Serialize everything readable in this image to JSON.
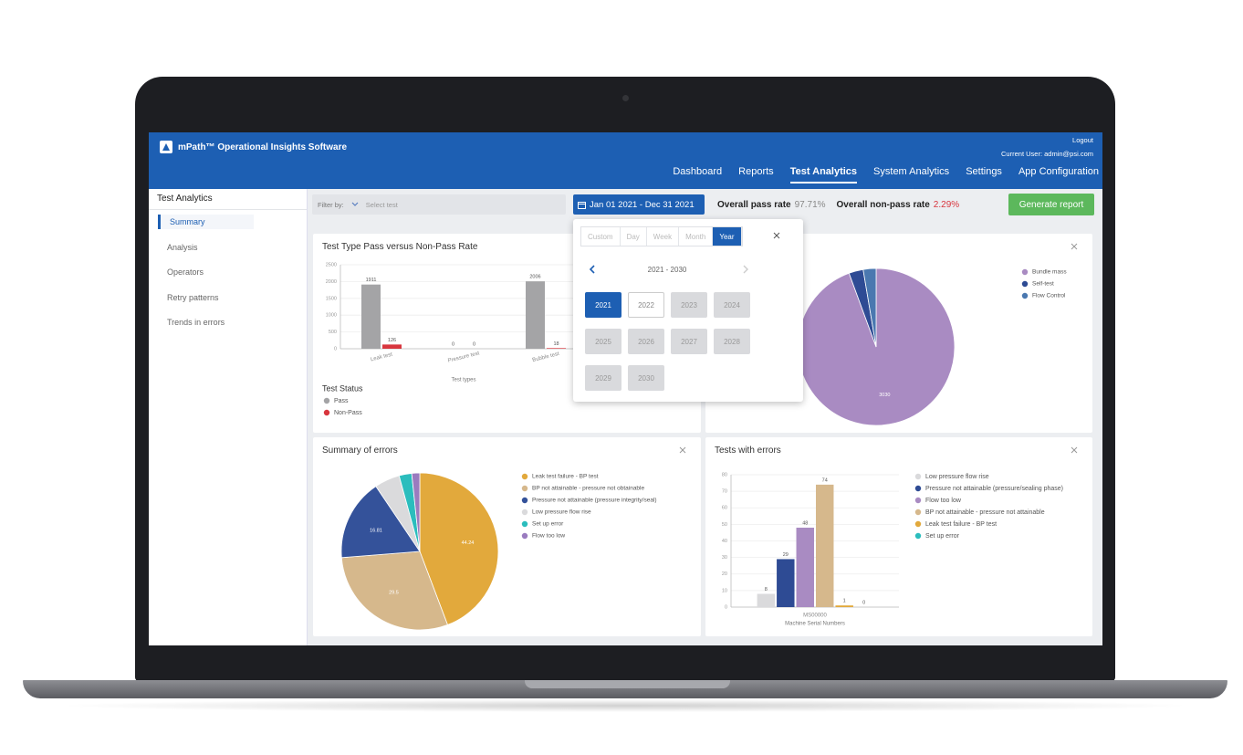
{
  "header": {
    "title": "mPath™ Operational Insights Software",
    "logout": "Logout",
    "current_user": "Current User: admin@psi.com",
    "nav": [
      "Dashboard",
      "Reports",
      "Test Analytics",
      "System Analytics",
      "Settings",
      "App Configuration"
    ]
  },
  "sidebar": {
    "title": "Test Analytics",
    "items": [
      "Summary",
      "Analysis",
      "Operators",
      "Retry patterns",
      "Trends in errors"
    ]
  },
  "toolbar": {
    "filter_label": "Filter by:",
    "filter_placeholder": "Select test",
    "date_range": "Jan 01 2021 - Dec 31 2021",
    "pass_rate_label": "Overall pass rate",
    "pass_rate": "97.71%",
    "non_pass_label": "Overall non-pass rate",
    "non_pass_rate": "2.29%",
    "report_button": "Generate report"
  },
  "date_picker": {
    "tabs": [
      "Custom",
      "Day",
      "Week",
      "Month",
      "Year"
    ],
    "range": "2021 - 2030",
    "years": [
      2021,
      2022,
      2023,
      2024,
      2025,
      2026,
      2027,
      2028,
      2029,
      2030
    ]
  },
  "panels": [
    {
      "type": "bar",
      "title": "Test Type Pass versus Non-Pass Rate",
      "categories": [
        "Leak test",
        "Pressure test",
        "Bubble test"
      ],
      "series": [
        {
          "name": "Pass",
          "color": "#a4a4a6",
          "values": [
            1911,
            0,
            2006
          ]
        },
        {
          "name": "Non-Pass",
          "color": "#d8363e",
          "values": [
            126,
            0,
            18
          ]
        }
      ],
      "ylim": [
        0,
        2500
      ],
      "yticks": [
        0,
        500,
        1000,
        1500,
        2000,
        2500
      ],
      "xlabel": "Test types",
      "legend_title": "Test Status"
    },
    {
      "type": "pie",
      "labels": [
        "Bundle mass",
        "Self-test",
        "Flow Control"
      ],
      "colors": [
        "#a98bc2",
        "#2e4b94",
        "#4a78b0"
      ],
      "values": [
        3030,
        95,
        85
      ]
    },
    {
      "type": "pie",
      "title": "Summary of errors",
      "labels": [
        "Leak test failure - BP test",
        "BP not attainable - pressure not obtainable",
        "Pressure not attainable (pressure integrity/seal)",
        "Low pressure flow rise",
        "Set up error",
        "Flow too low"
      ],
      "colors": [
        "#e2a93c",
        "#d6b88c",
        "#34529a",
        "#dadadc",
        "#2bbdbd",
        "#9a7bbf"
      ],
      "values": [
        44.24,
        29.5,
        16.81,
        5.2,
        2.6,
        1.65
      ]
    },
    {
      "type": "bar",
      "title": "Tests with errors",
      "categories": [
        "MS00000"
      ],
      "series": [
        {
          "name": "Low pressure flow rise",
          "color": "#dadadc",
          "values": [
            8
          ]
        },
        {
          "name": "Pressure not attainable (pressure/sealing phase)",
          "color": "#2e4b94",
          "values": [
            29
          ]
        },
        {
          "name": "Flow too low",
          "color": "#a98bc2",
          "values": [
            48
          ]
        },
        {
          "name": "BP not attainable - pressure not attainable",
          "color": "#d6b88c",
          "values": [
            74
          ]
        },
        {
          "name": "Leak test failure - BP test",
          "color": "#e2a93c",
          "values": [
            1
          ]
        },
        {
          "name": "Set up error",
          "color": "#2bbdbd",
          "values": [
            0
          ]
        }
      ],
      "ylim": [
        0,
        80
      ],
      "yticks": [
        0,
        10,
        20,
        30,
        40,
        50,
        60,
        70,
        80
      ],
      "xlabel": "Machine Serial Numbers"
    }
  ]
}
